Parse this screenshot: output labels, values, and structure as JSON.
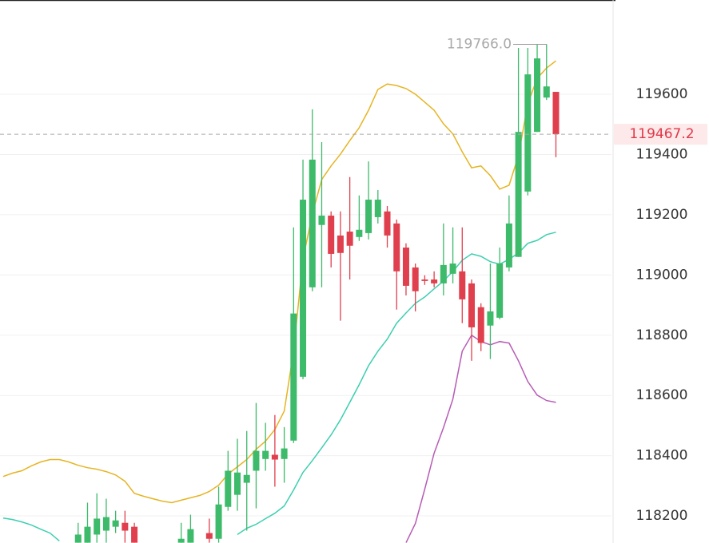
{
  "chart_data": {
    "type": "candlestick",
    "ylim": [
      118110,
      119913
    ],
    "yticks": [
      118200,
      118400,
      118600,
      118800,
      119000,
      119200,
      119400,
      119600
    ],
    "grid": true,
    "up_color": "#3dba6a",
    "down_color": "#e0404e",
    "candles": [
      null,
      null,
      null,
      null,
      null,
      null,
      null,
      null,
      {
        "open": 118111,
        "high": 118177,
        "low": 118111,
        "close": 118138
      },
      {
        "open": 118111,
        "high": 118244,
        "low": 118111,
        "close": 118164
      },
      {
        "open": 118138,
        "high": 118275,
        "low": 118111,
        "close": 118191
      },
      {
        "open": 118151,
        "high": 118257,
        "low": 118111,
        "close": 118196
      },
      {
        "open": 118164,
        "high": 118217,
        "low": 118143,
        "close": 118185
      },
      {
        "open": 118177,
        "high": 118217,
        "low": 118111,
        "close": 118151
      },
      {
        "open": 118164,
        "high": 118177,
        "low": 118111,
        "close": 118111
      },
      null,
      null,
      null,
      null,
      {
        "open": 118111,
        "high": 118177,
        "low": 118111,
        "close": 118124
      },
      {
        "open": 118111,
        "high": 118204,
        "low": 118111,
        "close": 118156
      },
      null,
      {
        "open": 118143,
        "high": 118191,
        "low": 118111,
        "close": 118124
      },
      {
        "open": 118124,
        "high": 118297,
        "low": 118111,
        "close": 118238
      },
      {
        "open": 118230,
        "high": 118416,
        "low": 118217,
        "close": 118350
      },
      {
        "open": 118270,
        "high": 118456,
        "low": 118217,
        "close": 118344
      },
      {
        "open": 118310,
        "high": 118482,
        "low": 118151,
        "close": 118336
      },
      {
        "open": 118350,
        "high": 118575,
        "low": 118225,
        "close": 118416
      },
      {
        "open": 118389,
        "high": 118509,
        "low": 118350,
        "close": 118416
      },
      {
        "open": 118403,
        "high": 118535,
        "low": 118297,
        "close": 118387
      },
      {
        "open": 118389,
        "high": 118495,
        "low": 118310,
        "close": 118424
      },
      {
        "open": 118450,
        "high": 119158,
        "low": 118442,
        "close": 118872
      },
      {
        "open": 118662,
        "high": 119383,
        "low": 118654,
        "close": 119250
      },
      {
        "open": 118959,
        "high": 119550,
        "low": 118946,
        "close": 119383
      },
      {
        "open": 119166,
        "high": 119441,
        "low": 118959,
        "close": 119197
      },
      {
        "open": 119197,
        "high": 119211,
        "low": 119025,
        "close": 119070
      },
      {
        "open": 119131,
        "high": 119211,
        "low": 118848,
        "close": 119073
      },
      {
        "open": 119144,
        "high": 119325,
        "low": 118985,
        "close": 119097
      },
      {
        "open": 119126,
        "high": 119264,
        "low": 119113,
        "close": 119150
      },
      {
        "open": 119139,
        "high": 119377,
        "low": 119118,
        "close": 119250
      },
      {
        "open": 119192,
        "high": 119282,
        "low": 119171,
        "close": 119250
      },
      {
        "open": 119211,
        "high": 119229,
        "low": 119091,
        "close": 119131
      },
      {
        "open": 119171,
        "high": 119184,
        "low": 118885,
        "close": 119012
      },
      {
        "open": 119091,
        "high": 119105,
        "low": 118932,
        "close": 118964
      },
      {
        "open": 119025,
        "high": 119038,
        "low": 118879,
        "close": 118946
      },
      {
        "open": 118985,
        "high": 118999,
        "low": 118967,
        "close": 118980
      },
      {
        "open": 118985,
        "high": 119012,
        "low": 118959,
        "close": 118972
      },
      {
        "open": 118972,
        "high": 119171,
        "low": 118932,
        "close": 119033
      },
      {
        "open": 119004,
        "high": 119158,
        "low": 118972,
        "close": 119038
      },
      {
        "open": 119012,
        "high": 119158,
        "low": 118840,
        "close": 118919
      },
      {
        "open": 118972,
        "high": 118985,
        "low": 118715,
        "close": 118826
      },
      {
        "open": 118893,
        "high": 118906,
        "low": 118747,
        "close": 118774
      },
      {
        "open": 118832,
        "high": 119038,
        "low": 118721,
        "close": 118879
      },
      {
        "open": 118858,
        "high": 119091,
        "low": 118853,
        "close": 119038
      },
      {
        "open": 119025,
        "high": 119264,
        "low": 119012,
        "close": 119171
      },
      {
        "open": 119060,
        "high": 119754,
        "low": 119060,
        "close": 119475
      },
      {
        "open": 119277,
        "high": 119754,
        "low": 119264,
        "close": 119666
      },
      {
        "open": 119475,
        "high": 119766,
        "low": 119475,
        "close": 119719
      },
      {
        "open": 119589,
        "high": 119766,
        "low": 119581,
        "close": 119626
      },
      {
        "open": 119608,
        "high": 119608,
        "low": 119391,
        "close": 119467.2
      }
    ],
    "lines": [
      {
        "color": "#e6b422",
        "values": [
          118331,
          118342,
          118350,
          118366,
          118379,
          118387,
          118387,
          118379,
          118368,
          118360,
          118355,
          118347,
          118336,
          118315,
          118275,
          118265,
          118257,
          118249,
          118244,
          118252,
          118260,
          118268,
          118281,
          118302,
          118339,
          118363,
          118387,
          118421,
          118448,
          118487,
          118548,
          118747,
          119052,
          119203,
          119317,
          119362,
          119401,
          119446,
          119489,
          119547,
          119616,
          119634,
          119629,
          119619,
          119600,
          119574,
          119547,
          119502,
          119468,
          119409,
          119356,
          119362,
          119330,
          119285,
          119298,
          119396,
          119568,
          119653,
          119687,
          119711
        ]
      },
      {
        "color": "#3ccfb0",
        "values": [
          118193,
          118188,
          118180,
          118170,
          118156,
          118143,
          118117,
          null,
          null,
          null,
          null,
          null,
          null,
          null,
          null,
          null,
          null,
          null,
          null,
          null,
          null,
          null,
          null,
          null,
          null,
          118138,
          118159,
          118172,
          118191,
          118209,
          118233,
          118286,
          118344,
          118384,
          118426,
          118469,
          118519,
          118577,
          118636,
          118699,
          118747,
          118787,
          118840,
          118874,
          118906,
          118927,
          118954,
          118980,
          119012,
          119049,
          119070,
          119062,
          119044,
          119036,
          119052,
          119073,
          119105,
          119115,
          119134,
          119142
        ]
      },
      {
        "color": "#b65cb5",
        "values": [
          null,
          null,
          null,
          null,
          null,
          null,
          null,
          null,
          null,
          null,
          null,
          null,
          null,
          null,
          null,
          null,
          null,
          null,
          null,
          null,
          null,
          null,
          null,
          null,
          null,
          null,
          null,
          null,
          null,
          null,
          null,
          null,
          null,
          null,
          null,
          null,
          null,
          null,
          null,
          null,
          null,
          null,
          null,
          118111,
          118175,
          118289,
          118408,
          118493,
          118588,
          118747,
          118800,
          118779,
          118768,
          118779,
          118774,
          118715,
          118646,
          118601,
          118583,
          118577
        ]
      }
    ],
    "max_label": {
      "value": 119766,
      "label": "119766.0"
    },
    "current_price": 119467.2
  }
}
